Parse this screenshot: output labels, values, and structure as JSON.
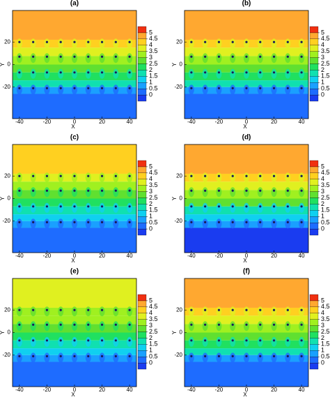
{
  "chart_data": [
    {
      "type": "contour",
      "title": "(a)",
      "xlabel": "X",
      "ylabel": "Y",
      "xlim": [
        -45,
        45
      ],
      "ylim": [
        -48,
        48
      ],
      "xticks": [
        -40,
        -20,
        0,
        20,
        40
      ],
      "yticks": [
        -20,
        0,
        20
      ],
      "levels": [
        0,
        0.5,
        1,
        1.5,
        2,
        2.5,
        3,
        3.5,
        4,
        4.5,
        5
      ],
      "colors": [
        "#1a3cf0",
        "#1e6cff",
        "#1aa0ff",
        "#10d0f0",
        "#10e0b0",
        "#20e060",
        "#60e030",
        "#a0f020",
        "#e0f020",
        "#ffd020",
        "#ffa830",
        "#f03010"
      ],
      "bands": [
        {
          "top": 48,
          "bottom": 22,
          "value": 4.6
        },
        {
          "top": 22,
          "bottom": 15,
          "value": 4.1
        },
        {
          "top": 15,
          "bottom": 7.5,
          "value": 3.6
        },
        {
          "top": 7.5,
          "bottom": 0,
          "value": 3.1
        },
        {
          "top": 0,
          "bottom": -7,
          "value": 2.6
        },
        {
          "top": -7,
          "bottom": -14,
          "value": 2.1
        },
        {
          "top": -14,
          "bottom": -20,
          "value": 1.6
        },
        {
          "top": -20,
          "bottom": -26,
          "value": 0.8
        },
        {
          "top": -26,
          "bottom": -48,
          "value": 0.3
        }
      ],
      "wells": {
        "x": [
          -40,
          -30,
          -20,
          -10,
          0,
          10,
          20,
          30,
          40
        ],
        "y": [
          20,
          7,
          -7,
          -21
        ]
      }
    },
    {
      "type": "contour",
      "title": "(b)",
      "xlabel": "X",
      "ylabel": "Y",
      "xlim": [
        -45,
        45
      ],
      "ylim": [
        -48,
        48
      ],
      "xticks": [
        -40,
        -20,
        0,
        20,
        40
      ],
      "yticks": [
        -20,
        0,
        20
      ],
      "levels": [
        0,
        0.5,
        1,
        1.5,
        2,
        2.5,
        3,
        3.5,
        4,
        4.5,
        5
      ],
      "colors": [
        "#1a3cf0",
        "#1e6cff",
        "#1aa0ff",
        "#10d0f0",
        "#10e0b0",
        "#20e060",
        "#60e030",
        "#a0f020",
        "#e0f020",
        "#ffd020",
        "#ffa830",
        "#f03010"
      ],
      "bands": [
        {
          "top": 48,
          "bottom": 22,
          "value": 4.6
        },
        {
          "top": 22,
          "bottom": 15,
          "value": 4.1
        },
        {
          "top": 15,
          "bottom": 7.5,
          "value": 3.6
        },
        {
          "top": 7.5,
          "bottom": 0,
          "value": 3.1
        },
        {
          "top": 0,
          "bottom": -7,
          "value": 2.6
        },
        {
          "top": -7,
          "bottom": -14,
          "value": 2.1
        },
        {
          "top": -14,
          "bottom": -20,
          "value": 1.6
        },
        {
          "top": -20,
          "bottom": -26,
          "value": 0.8
        },
        {
          "top": -26,
          "bottom": -48,
          "value": 0.3
        }
      ],
      "wells": {
        "x": [
          -40,
          -30,
          -20,
          -10,
          0,
          10,
          20,
          30,
          40
        ],
        "y": [
          20,
          7,
          -7,
          -21
        ]
      }
    },
    {
      "type": "contour",
      "title": "(c)",
      "xlabel": "X",
      "ylabel": "Y",
      "xlim": [
        -45,
        45
      ],
      "ylim": [
        -48,
        48
      ],
      "xticks": [
        -40,
        -20,
        0,
        20,
        40
      ],
      "yticks": [
        -20,
        0,
        20
      ],
      "levels": [
        0,
        0.5,
        1,
        1.5,
        2,
        2.5,
        3,
        3.5,
        4,
        4.5,
        5
      ],
      "colors": [
        "#1a3cf0",
        "#1e6cff",
        "#1aa0ff",
        "#10d0f0",
        "#10e0b0",
        "#20e060",
        "#60e030",
        "#a0f020",
        "#e0f020",
        "#ffd020",
        "#ffa830",
        "#f03010"
      ],
      "bands": [
        {
          "top": 48,
          "bottom": 22,
          "value": 4.3
        },
        {
          "top": 22,
          "bottom": 15,
          "value": 3.8
        },
        {
          "top": 15,
          "bottom": 7.5,
          "value": 3.3
        },
        {
          "top": 7.5,
          "bottom": 0,
          "value": 2.8
        },
        {
          "top": 0,
          "bottom": -7,
          "value": 2.3
        },
        {
          "top": -7,
          "bottom": -14,
          "value": 1.8
        },
        {
          "top": -14,
          "bottom": -20,
          "value": 1.3
        },
        {
          "top": -20,
          "bottom": -26,
          "value": 0.8
        },
        {
          "top": -26,
          "bottom": -48,
          "value": 0.3
        }
      ],
      "wells": {
        "x": [
          -40,
          -30,
          -20,
          -10,
          0,
          10,
          20,
          30,
          40
        ],
        "y": [
          20,
          7,
          -7,
          -21
        ]
      }
    },
    {
      "type": "contour",
      "title": "(d)",
      "xlabel": "X",
      "ylabel": "Y",
      "xlim": [
        -45,
        45
      ],
      "ylim": [
        -48,
        48
      ],
      "xticks": [
        -40,
        -20,
        0,
        20,
        40
      ],
      "yticks": [
        -20,
        0,
        20
      ],
      "levels": [
        0,
        0.5,
        1,
        1.5,
        2,
        2.5,
        3,
        3.5,
        4,
        4.5,
        5
      ],
      "colors": [
        "#1a3cf0",
        "#1e6cff",
        "#1aa0ff",
        "#10d0f0",
        "#10e0b0",
        "#20e060",
        "#60e030",
        "#a0f020",
        "#e0f020",
        "#ffd020",
        "#ffa830",
        "#f03010"
      ],
      "bands": [
        {
          "top": 48,
          "bottom": 22,
          "value": 4.6
        },
        {
          "top": 22,
          "bottom": 15,
          "value": 4.1
        },
        {
          "top": 15,
          "bottom": 7.5,
          "value": 3.6
        },
        {
          "top": 7.5,
          "bottom": 0,
          "value": 3.1
        },
        {
          "top": 0,
          "bottom": -7,
          "value": 2.6
        },
        {
          "top": -7,
          "bottom": -14,
          "value": 1.6
        },
        {
          "top": -14,
          "bottom": -20,
          "value": 1.1
        },
        {
          "top": -20,
          "bottom": -26,
          "value": 0.6
        },
        {
          "top": -26,
          "bottom": -48,
          "value": -0.2
        }
      ],
      "wells": {
        "x": [
          -40,
          -30,
          -20,
          -10,
          0,
          10,
          20,
          30,
          40
        ],
        "y": [
          20,
          7,
          -7,
          -21
        ]
      }
    },
    {
      "type": "contour",
      "title": "(e)",
      "xlabel": "X",
      "ylabel": "Y",
      "xlim": [
        -45,
        45
      ],
      "ylim": [
        -48,
        48
      ],
      "xticks": [
        -40,
        -20,
        0,
        20,
        40
      ],
      "yticks": [
        -20,
        0,
        20
      ],
      "levels": [
        0,
        0.5,
        1,
        1.5,
        2,
        2.5,
        3,
        3.5,
        4,
        4.5,
        5
      ],
      "colors": [
        "#1a3cf0",
        "#1e6cff",
        "#1aa0ff",
        "#10d0f0",
        "#10e0b0",
        "#20e060",
        "#60e030",
        "#a0f020",
        "#e0f020",
        "#ffd020",
        "#ffa830",
        "#f03010"
      ],
      "bands": [
        {
          "top": 48,
          "bottom": 22,
          "value": 3.7
        },
        {
          "top": 22,
          "bottom": 15,
          "value": 3.3
        },
        {
          "top": 15,
          "bottom": 7.5,
          "value": 3.1
        },
        {
          "top": 7.5,
          "bottom": 0,
          "value": 2.8
        },
        {
          "top": 0,
          "bottom": -7,
          "value": 2.3
        },
        {
          "top": -7,
          "bottom": -14,
          "value": 1.8
        },
        {
          "top": -14,
          "bottom": -20,
          "value": 1.3
        },
        {
          "top": -20,
          "bottom": -26,
          "value": 0.8
        },
        {
          "top": -26,
          "bottom": -48,
          "value": 0.3
        }
      ],
      "wells": {
        "x": [
          -40,
          -30,
          -20,
          -10,
          0,
          10,
          20,
          30,
          40
        ],
        "y": [
          20,
          7,
          -7,
          -21
        ]
      }
    },
    {
      "type": "contour",
      "title": "(f)",
      "xlabel": "X",
      "ylabel": "Y",
      "xlim": [
        -45,
        45
      ],
      "ylim": [
        -48,
        48
      ],
      "xticks": [
        -40,
        -20,
        0,
        20,
        40
      ],
      "yticks": [
        -20,
        0,
        20
      ],
      "levels": [
        0,
        0.5,
        1,
        1.5,
        2,
        2.5,
        3,
        3.5,
        4,
        4.5,
        5
      ],
      "colors": [
        "#1a3cf0",
        "#1e6cff",
        "#1aa0ff",
        "#10d0f0",
        "#10e0b0",
        "#20e060",
        "#60e030",
        "#a0f020",
        "#e0f020",
        "#ffd020",
        "#ffa830",
        "#f03010"
      ],
      "bands": [
        {
          "top": 48,
          "bottom": 22,
          "value": 4.6
        },
        {
          "top": 22,
          "bottom": 15,
          "value": 4.1
        },
        {
          "top": 15,
          "bottom": 7.5,
          "value": 3.6
        },
        {
          "top": 7.5,
          "bottom": 0,
          "value": 3.1
        },
        {
          "top": 0,
          "bottom": -7,
          "value": 2.6
        },
        {
          "top": -7,
          "bottom": -14,
          "value": 2.1
        },
        {
          "top": -14,
          "bottom": -20,
          "value": 1.6
        },
        {
          "top": -20,
          "bottom": -26,
          "value": 0.8
        },
        {
          "top": -26,
          "bottom": -48,
          "value": 0.3
        }
      ],
      "wells": {
        "x": [
          -40,
          -30,
          -20,
          -10,
          0,
          10,
          20,
          30,
          40
        ],
        "y": [
          20,
          7,
          -7,
          -21
        ]
      }
    }
  ]
}
